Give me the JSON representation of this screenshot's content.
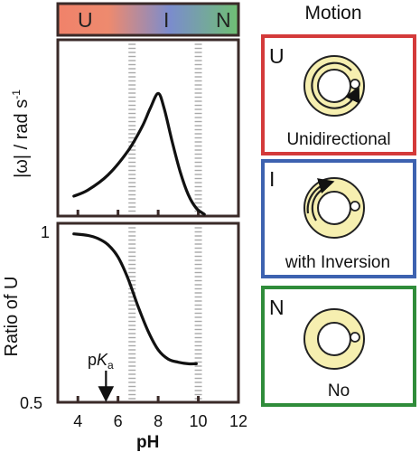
{
  "gradient_bar": {
    "labels": [
      "U",
      "I",
      "N"
    ],
    "colors": [
      "#f0826a",
      "#7b8ccd",
      "#6fbf73"
    ]
  },
  "top_plot": {
    "ylabel": "|ω| / rad s",
    "ylabel_sup": "-1"
  },
  "bottom_plot": {
    "ylabel": "Ratio of U",
    "ytick_top": "1",
    "ytick_bottom": "0.5",
    "pka_label_p": "p",
    "pka_label_K": "K",
    "pka_label_sub": "a"
  },
  "x_axis": {
    "label": "pH",
    "ticks": [
      "4",
      "6",
      "8",
      "10",
      "12"
    ]
  },
  "chart_data": [
    {
      "type": "line",
      "title": "",
      "xlabel": "pH",
      "ylabel": "|ω| / rad s-1",
      "x": [
        3.8,
        4.5,
        5.5,
        6.5,
        7.2,
        7.6,
        8.0,
        8.3,
        8.7,
        9.1,
        9.5,
        9.9,
        10.3
      ],
      "y": [
        0.12,
        0.16,
        0.26,
        0.42,
        0.58,
        0.7,
        0.8,
        0.7,
        0.48,
        0.28,
        0.13,
        0.04,
        0.0
      ],
      "xlim": [
        3,
        12
      ],
      "ylim": [
        0,
        1
      ],
      "dashed_x": [
        6.7,
        10
      ]
    },
    {
      "type": "line",
      "title": "",
      "xlabel": "pH",
      "ylabel": "Ratio of U",
      "x": [
        3.8,
        4.5,
        5.0,
        5.5,
        6.0,
        6.5,
        7.0,
        7.5,
        8.0,
        8.5,
        9.0,
        9.5,
        9.9
      ],
      "y": [
        0.995,
        0.99,
        0.98,
        0.96,
        0.92,
        0.85,
        0.76,
        0.68,
        0.62,
        0.59,
        0.58,
        0.575,
        0.575
      ],
      "xlim": [
        3,
        12
      ],
      "ylim": [
        0.5,
        1
      ],
      "annotation": {
        "text": "pKa",
        "x": 5.4
      },
      "dashed_x": [
        6.7,
        10
      ]
    }
  ],
  "motion": {
    "title": "Motion",
    "panels": [
      {
        "letter": "U",
        "caption": "Unidirectional",
        "border": "#d43a3a"
      },
      {
        "letter": "I",
        "caption": "with Inversion",
        "border": "#3d62b0"
      },
      {
        "letter": "N",
        "caption": "No",
        "border": "#2f8c3a"
      }
    ]
  }
}
